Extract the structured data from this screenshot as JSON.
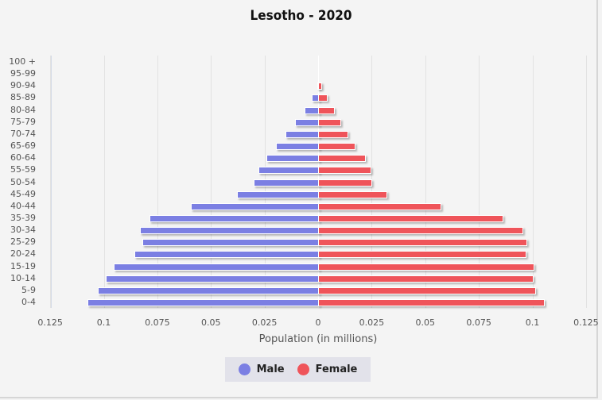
{
  "title": "Lesotho - 2020",
  "xaxis": {
    "label": "Population (in millions)",
    "ticks": [
      "0.125",
      "0.1",
      "0.075",
      "0.05",
      "0.025",
      "0",
      "0.025",
      "0.05",
      "0.075",
      "0.1",
      "0.125"
    ]
  },
  "legend": {
    "male": {
      "label": "Male",
      "color": "#7b7fe3"
    },
    "female": {
      "label": "Female",
      "color": "#ef545a"
    }
  },
  "chart_data": {
    "type": "bar",
    "orientation": "horizontal",
    "title": "Lesotho - 2020",
    "xlabel": "Population (in millions)",
    "ylabel": "",
    "xlim": [
      -0.125,
      0.125
    ],
    "categories": [
      "100 +",
      "95-99",
      "90-94",
      "85-89",
      "80-84",
      "75-79",
      "70-74",
      "65-69",
      "60-64",
      "55-59",
      "50-54",
      "45-49",
      "40-44",
      "35-39",
      "30-34",
      "25-29",
      "20-24",
      "15-19",
      "10-14",
      "5-9",
      "0-4"
    ],
    "series": [
      {
        "name": "Male",
        "color": "#7b7fe3",
        "values": [
          0.0,
          0.0001,
          0.0005,
          0.003,
          0.0063,
          0.0108,
          0.0152,
          0.0197,
          0.0241,
          0.0278,
          0.03,
          0.0378,
          0.0594,
          0.0787,
          0.083,
          0.082,
          0.0857,
          0.0954,
          0.099,
          0.1028,
          0.1076
        ]
      },
      {
        "name": "Female",
        "color": "#ef545a",
        "values": [
          0.0,
          0.0002,
          0.0011,
          0.0037,
          0.007,
          0.01,
          0.0134,
          0.0167,
          0.0215,
          0.0241,
          0.0245,
          0.0315,
          0.0568,
          0.0857,
          0.095,
          0.097,
          0.0965,
          0.1,
          0.0998,
          0.101,
          0.105
        ]
      }
    ],
    "grid": true,
    "legend_position": "bottom"
  }
}
